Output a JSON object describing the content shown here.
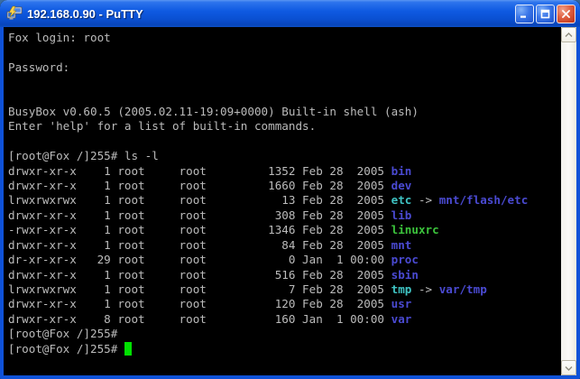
{
  "window": {
    "title": "192.168.0.90 - PuTTY",
    "controls": [
      {
        "name": "minimize"
      },
      {
        "name": "maximize"
      },
      {
        "name": "close"
      }
    ]
  },
  "colors": {
    "titlebar_blue": "#0f5ae2",
    "border_blue": "#0f52d8",
    "close_red": "#d9502e",
    "terminal_bg": "#000000",
    "foreground": "#bbbbbb",
    "directory_blue": "#4a4ad2",
    "symlink_cyan": "#3fc4c4",
    "executable_green": "#3cc43c",
    "cursor_green": "#00e000"
  },
  "terminal": {
    "hostname": "Fox",
    "prompt": "[root@Fox /]255#",
    "lines": [
      [
        {
          "t": "Fox login: root"
        }
      ],
      [],
      [
        {
          "t": "Password:"
        }
      ],
      [],
      [],
      [
        {
          "t": "BusyBox v0.60.5 (2005.02.11-19:09+0000) Built-in shell (ash)"
        }
      ],
      [
        {
          "t": "Enter 'help' for a list of built-in commands."
        }
      ],
      [],
      [
        {
          "t": "[root@Fox /]255# ls -l"
        }
      ],
      [
        {
          "t": "drwxr-xr-x    1 root     root         1352 Feb 28  2005 "
        },
        {
          "t": "bin",
          "c": "dir"
        }
      ],
      [
        {
          "t": "drwxr-xr-x    1 root     root         1660 Feb 28  2005 "
        },
        {
          "t": "dev",
          "c": "dir"
        }
      ],
      [
        {
          "t": "lrwxrwxrwx    1 root     root           13 Feb 28  2005 "
        },
        {
          "t": "etc",
          "c": "link"
        },
        {
          "t": " -> "
        },
        {
          "t": "mnt/flash/etc",
          "c": "dir"
        }
      ],
      [
        {
          "t": "drwxr-xr-x    1 root     root          308 Feb 28  2005 "
        },
        {
          "t": "lib",
          "c": "dir"
        }
      ],
      [
        {
          "t": "-rwxr-xr-x    1 root     root         1346 Feb 28  2005 "
        },
        {
          "t": "linuxrc",
          "c": "exec"
        }
      ],
      [
        {
          "t": "drwxr-xr-x    1 root     root           84 Feb 28  2005 "
        },
        {
          "t": "mnt",
          "c": "dir"
        }
      ],
      [
        {
          "t": "dr-xr-xr-x   29 root     root            0 Jan  1 00:00 "
        },
        {
          "t": "proc",
          "c": "dir"
        }
      ],
      [
        {
          "t": "drwxr-xr-x    1 root     root          516 Feb 28  2005 "
        },
        {
          "t": "sbin",
          "c": "dir"
        }
      ],
      [
        {
          "t": "lrwxrwxrwx    1 root     root            7 Feb 28  2005 "
        },
        {
          "t": "tmp",
          "c": "link"
        },
        {
          "t": " -> "
        },
        {
          "t": "var/tmp",
          "c": "dir"
        }
      ],
      [
        {
          "t": "drwxr-xr-x    1 root     root          120 Feb 28  2005 "
        },
        {
          "t": "usr",
          "c": "dir"
        }
      ],
      [
        {
          "t": "drwxr-xr-x    8 root     root          160 Jan  1 00:00 "
        },
        {
          "t": "var",
          "c": "dir"
        }
      ],
      [
        {
          "t": "[root@Fox /]255#"
        }
      ],
      [
        {
          "t": "[root@Fox /]255# "
        },
        {
          "t": " ",
          "c": "cursor"
        }
      ]
    ]
  }
}
